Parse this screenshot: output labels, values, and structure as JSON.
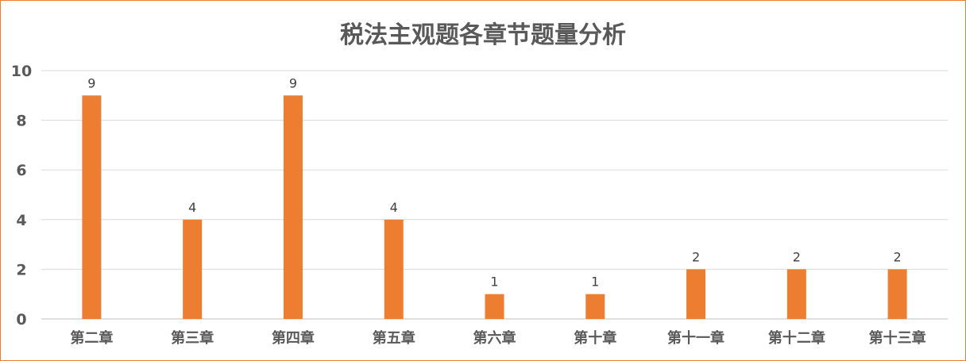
{
  "chart_data": {
    "type": "bar",
    "title": "税法主观题各章节题量分析",
    "categories": [
      "第二章",
      "第三章",
      "第四章",
      "第五章",
      "第六章",
      "第十章",
      "第十一章",
      "第十二章",
      "第十三章"
    ],
    "values": [
      9,
      4,
      9,
      4,
      1,
      1,
      2,
      2,
      2
    ],
    "xlabel": "",
    "ylabel": "",
    "ylim": [
      0,
      10
    ],
    "yticks": [
      0,
      2,
      4,
      6,
      8,
      10
    ],
    "grid": true,
    "data_labels": true,
    "bar_color": "#ED7D31",
    "legend": "none"
  }
}
